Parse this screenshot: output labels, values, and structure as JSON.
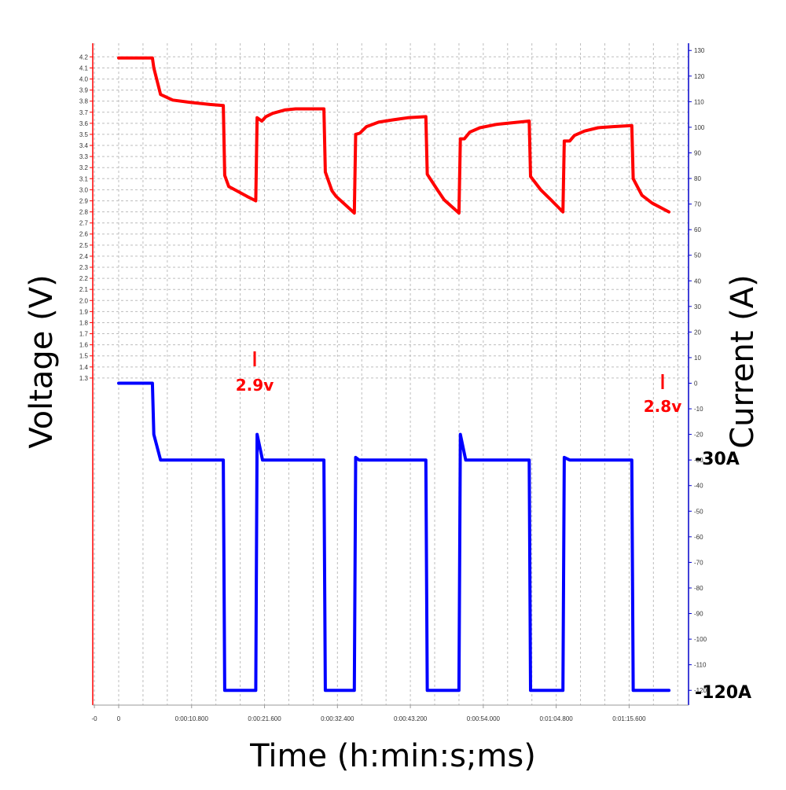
{
  "chart_data": {
    "type": "line",
    "xlabel": "Time (h:min:s;ms)",
    "ylabel_left": "Voltage (V)",
    "ylabel_right": "Current (A)",
    "x_tick_labels": [
      "-0",
      "0",
      "0:00:10.800",
      "0:00:21.600",
      "0:00:32.400",
      "0:00:43.200",
      "0:00:54.000",
      "0:01:04.800",
      "0:01:15.600"
    ],
    "x_tick_seconds": [
      -3.6,
      0,
      10.8,
      21.6,
      32.4,
      43.2,
      54.0,
      64.8,
      75.6
    ],
    "xlim_seconds": [
      -3.6,
      84.0
    ],
    "ylim_left": [
      1.25,
      4.25
    ],
    "ylim_right": [
      -127.5,
      130
    ],
    "y_left_ticks": [
      "1.3",
      "1.4",
      "1.5",
      "1.6",
      "1.7",
      "1.8",
      "1.9",
      "2.0",
      "2.1",
      "2.2",
      "2.3",
      "2.4",
      "2.5",
      "2.6",
      "2.7",
      "2.8",
      "2.9",
      "3.0",
      "3.1",
      "3.2",
      "3.3",
      "3.4",
      "3.5",
      "3.6",
      "3.7",
      "3.8",
      "3.9",
      "4.0",
      "4.1",
      "4.2"
    ],
    "y_right_ticks": [
      "130",
      "120",
      "110",
      "100",
      "90",
      "80",
      "70",
      "60",
      "50",
      "40",
      "30",
      "20",
      "10",
      "0",
      "-10",
      "-20",
      "-30",
      "-40",
      "-50",
      "-60",
      "-70",
      "-80",
      "-90",
      "-100",
      "-110",
      "-120"
    ],
    "grid": true,
    "colors": {
      "voltage": "#ff0000",
      "current": "#0000ff",
      "left_axis": "#ff0000",
      "right_axis": "#0000cc",
      "grid": "#bdbdbd"
    },
    "series": [
      {
        "name": "Voltage",
        "axis": "left",
        "x": [
          0.0,
          5.0,
          5.2,
          6.2,
          8.0,
          10.5,
          13.5,
          15.5,
          15.7,
          16.3,
          17.5,
          19.0,
          20.3,
          20.5,
          21.2,
          21.8,
          22.8,
          24.6,
          26.2,
          28.5,
          30.4,
          30.6,
          31.6,
          32.2,
          34.9,
          35.1,
          35.7,
          36.7,
          38.5,
          40.5,
          42.8,
          45.5,
          45.7,
          47.2,
          48.2,
          50.4,
          50.6,
          51.2,
          52.0,
          53.5,
          56.0,
          60.8,
          61.0,
          62.5,
          64.0,
          65.8,
          66.0,
          66.8,
          67.5,
          69.0,
          71.0,
          73.2,
          76.0,
          76.2,
          77.5,
          79.0,
          81.5
        ],
        "y": [
          4.19,
          4.19,
          4.1,
          3.86,
          3.81,
          3.79,
          3.77,
          3.76,
          3.13,
          3.03,
          2.99,
          2.94,
          2.9,
          3.65,
          3.62,
          3.66,
          3.69,
          3.72,
          3.73,
          3.73,
          3.73,
          3.16,
          2.99,
          2.94,
          2.79,
          3.5,
          3.51,
          3.57,
          3.61,
          3.63,
          3.65,
          3.66,
          3.14,
          3.0,
          2.91,
          2.79,
          3.46,
          3.46,
          3.52,
          3.56,
          3.59,
          3.62,
          3.12,
          3.0,
          2.91,
          2.8,
          3.44,
          3.44,
          3.49,
          3.53,
          3.56,
          3.57,
          3.58,
          3.1,
          2.95,
          2.88,
          2.8
        ]
      },
      {
        "name": "Current",
        "axis": "right",
        "x": [
          0.0,
          5.0,
          5.2,
          6.2,
          15.5,
          15.7,
          20.3,
          20.5,
          21.3,
          28.8,
          30.4,
          30.6,
          34.9,
          35.1,
          35.6,
          44.3,
          45.5,
          45.7,
          50.4,
          50.6,
          51.4,
          60.8,
          61.0,
          65.8,
          66.0,
          66.8,
          67.4,
          76.0,
          76.2,
          81.5
        ],
        "y": [
          0,
          0,
          -20,
          -30,
          -30,
          -120,
          -120,
          -20,
          -30,
          -30,
          -30,
          -120,
          -120,
          -29,
          -30,
          -30,
          -30,
          -120,
          -120,
          -20,
          -30,
          -30,
          -120,
          -120,
          -29,
          -30,
          -30,
          -30,
          -120,
          -120
        ]
      }
    ],
    "annotations": {
      "v1": "2.9v",
      "v2": "2.8v",
      "i1": "-30A",
      "i2": "-120A"
    }
  }
}
